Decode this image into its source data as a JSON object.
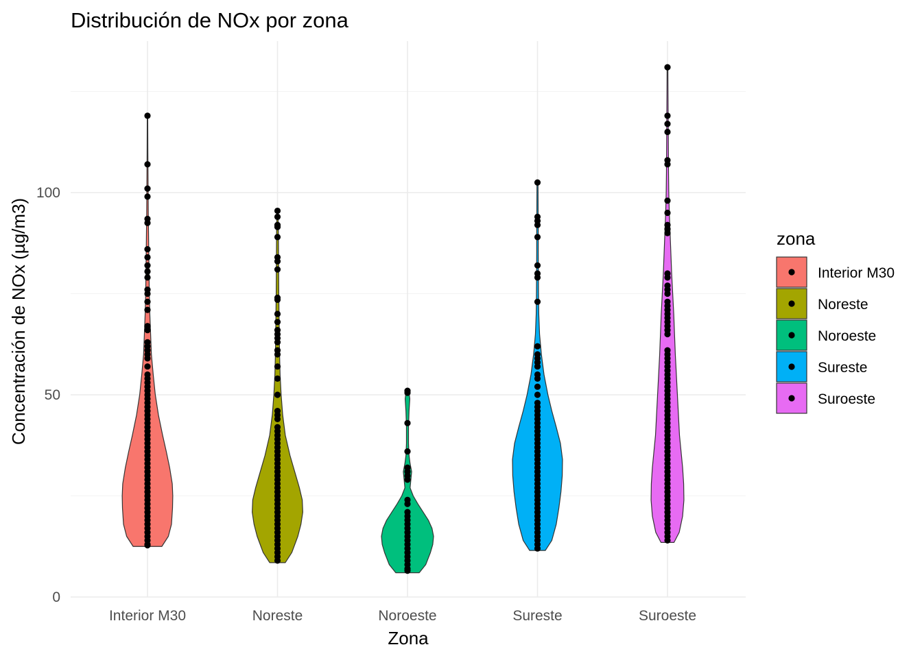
{
  "chart_data": {
    "type": "violin",
    "title": "Distribución de NOx por zona",
    "xlabel": "Zona",
    "ylabel": "Concentración de NOx (µg/m3)",
    "ylim": [
      0,
      132
    ],
    "yticks": [
      0,
      50,
      100
    ],
    "grid": true,
    "legend": {
      "title": "zona",
      "position": "right"
    },
    "categories": [
      "Interior M30",
      "Noreste",
      "Noroeste",
      "Sureste",
      "Suroeste"
    ],
    "colors": [
      "#F8766D",
      "#A3A500",
      "#00BF7D",
      "#00B0F6",
      "#E76BF3"
    ],
    "series": [
      {
        "name": "Interior M30",
        "range": [
          12.5,
          119
        ],
        "density": [
          [
            12.5,
            0.55
          ],
          [
            15,
            0.8
          ],
          [
            18,
            0.92
          ],
          [
            22,
            0.96
          ],
          [
            25,
            0.97
          ],
          [
            28,
            0.95
          ],
          [
            32,
            0.85
          ],
          [
            36,
            0.72
          ],
          [
            40,
            0.58
          ],
          [
            45,
            0.42
          ],
          [
            50,
            0.3
          ],
          [
            55,
            0.22
          ],
          [
            60,
            0.15
          ],
          [
            65,
            0.12
          ],
          [
            70,
            0.09
          ],
          [
            75,
            0.07
          ],
          [
            80,
            0.06
          ],
          [
            85,
            0.05
          ],
          [
            90,
            0.04
          ],
          [
            95,
            0.03
          ],
          [
            100,
            0.025
          ],
          [
            105,
            0.02
          ],
          [
            110,
            0.015
          ],
          [
            115,
            0.012
          ],
          [
            119,
            0.01
          ]
        ],
        "points": [
          119,
          107,
          101,
          99,
          93.5,
          92.5,
          86,
          84,
          82,
          80.5,
          79,
          76,
          75,
          73,
          71,
          67,
          66,
          63,
          62,
          61,
          60,
          59,
          57,
          55,
          54,
          53,
          52,
          51,
          50,
          49,
          48,
          47,
          46,
          45,
          44,
          43,
          42,
          41,
          40,
          39,
          38,
          37,
          36,
          35,
          34,
          33,
          32,
          31,
          30,
          29,
          28,
          27,
          26,
          25,
          24,
          23,
          22,
          21,
          20,
          19,
          18,
          17,
          16,
          15,
          14,
          13,
          12.8
        ]
      },
      {
        "name": "Noreste",
        "range": [
          8.5,
          95.5
        ],
        "density": [
          [
            8.5,
            0.3
          ],
          [
            11,
            0.55
          ],
          [
            15,
            0.78
          ],
          [
            18,
            0.9
          ],
          [
            21,
            0.97
          ],
          [
            24,
            0.95
          ],
          [
            27,
            0.84
          ],
          [
            31,
            0.66
          ],
          [
            35,
            0.48
          ],
          [
            40,
            0.3
          ],
          [
            45,
            0.2
          ],
          [
            50,
            0.14
          ],
          [
            55,
            0.1
          ],
          [
            60,
            0.08
          ],
          [
            65,
            0.07
          ],
          [
            70,
            0.06
          ],
          [
            75,
            0.05
          ],
          [
            80,
            0.045
          ],
          [
            85,
            0.04
          ],
          [
            90,
            0.035
          ],
          [
            95.5,
            0.02
          ]
        ],
        "points": [
          95.5,
          94,
          92,
          91.5,
          89,
          84,
          83,
          81,
          74,
          73.5,
          70,
          68,
          66,
          65,
          64,
          63,
          61,
          60,
          57,
          54,
          50,
          46,
          45,
          44,
          42,
          41,
          40,
          39,
          38,
          37,
          36,
          35,
          34,
          33,
          32,
          31,
          30,
          29,
          28,
          27,
          26,
          25,
          24,
          23,
          22,
          21,
          20,
          19,
          18,
          17,
          16,
          15,
          14,
          13,
          12,
          11,
          10,
          9
        ]
      },
      {
        "name": "Noroeste",
        "range": [
          6,
          51
        ],
        "density": [
          [
            6,
            0.45
          ],
          [
            8,
            0.7
          ],
          [
            11,
            0.88
          ],
          [
            13,
            0.97
          ],
          [
            15,
            1.0
          ],
          [
            17,
            0.94
          ],
          [
            19,
            0.8
          ],
          [
            21,
            0.6
          ],
          [
            23,
            0.4
          ],
          [
            25,
            0.22
          ],
          [
            27,
            0.1
          ],
          [
            29,
            0.13
          ],
          [
            31,
            0.16
          ],
          [
            33,
            0.1
          ],
          [
            35,
            0.06
          ],
          [
            38,
            0.04
          ],
          [
            42,
            0.04
          ],
          [
            46,
            0.06
          ],
          [
            49,
            0.09
          ],
          [
            51,
            0.05
          ]
        ],
        "points": [
          51,
          50.5,
          43,
          36,
          32,
          31,
          30,
          29,
          24,
          23,
          21,
          20,
          19,
          18,
          17,
          16,
          15,
          14,
          13,
          12,
          11,
          10,
          9,
          8,
          7,
          6.5
        ]
      },
      {
        "name": "Sureste",
        "range": [
          11.5,
          102.5
        ],
        "density": [
          [
            11.5,
            0.3
          ],
          [
            14,
            0.55
          ],
          [
            18,
            0.72
          ],
          [
            22,
            0.82
          ],
          [
            26,
            0.9
          ],
          [
            30,
            0.95
          ],
          [
            34,
            0.96
          ],
          [
            38,
            0.88
          ],
          [
            42,
            0.72
          ],
          [
            46,
            0.55
          ],
          [
            50,
            0.4
          ],
          [
            55,
            0.25
          ],
          [
            60,
            0.15
          ],
          [
            65,
            0.08
          ],
          [
            70,
            0.05
          ],
          [
            75,
            0.04
          ],
          [
            80,
            0.035
          ],
          [
            85,
            0.03
          ],
          [
            90,
            0.03
          ],
          [
            95,
            0.025
          ],
          [
            102.5,
            0.02
          ]
        ],
        "points": [
          102.5,
          94,
          93,
          92,
          89,
          82,
          80,
          79,
          73,
          62,
          60,
          59,
          58,
          57,
          55,
          54,
          52,
          50,
          48,
          47,
          46,
          45,
          44,
          43,
          42,
          41,
          40,
          39,
          38,
          37,
          36,
          35,
          34,
          33,
          32,
          31,
          30,
          29,
          28,
          27,
          26,
          25,
          24,
          23,
          22,
          21,
          20,
          19,
          18,
          17,
          16,
          15,
          14,
          13,
          12
        ]
      },
      {
        "name": "Suroeste",
        "range": [
          13.5,
          131
        ],
        "density": [
          [
            13.5,
            0.25
          ],
          [
            16,
            0.45
          ],
          [
            20,
            0.58
          ],
          [
            24,
            0.63
          ],
          [
            28,
            0.62
          ],
          [
            32,
            0.58
          ],
          [
            36,
            0.52
          ],
          [
            40,
            0.46
          ],
          [
            45,
            0.42
          ],
          [
            50,
            0.38
          ],
          [
            55,
            0.34
          ],
          [
            60,
            0.3
          ],
          [
            65,
            0.27
          ],
          [
            70,
            0.24
          ],
          [
            75,
            0.2
          ],
          [
            80,
            0.16
          ],
          [
            85,
            0.13
          ],
          [
            90,
            0.1
          ],
          [
            95,
            0.07
          ],
          [
            100,
            0.05
          ],
          [
            105,
            0.04
          ],
          [
            110,
            0.035
          ],
          [
            115,
            0.03
          ],
          [
            120,
            0.025
          ],
          [
            125,
            0.02
          ],
          [
            131,
            0.015
          ]
        ],
        "points": [
          131,
          119,
          117,
          115,
          108,
          107,
          98,
          95,
          92,
          91,
          90,
          80,
          79,
          77,
          76,
          75,
          73,
          72,
          71,
          70,
          69,
          68,
          67,
          66,
          65,
          61,
          60,
          59,
          58,
          57,
          56,
          55,
          54,
          53,
          52,
          51,
          50,
          49,
          48,
          47,
          46,
          45,
          44,
          43,
          42,
          41,
          40,
          39,
          38,
          37,
          36,
          35,
          34,
          33,
          32,
          31,
          30,
          29,
          28,
          27,
          26,
          25,
          24,
          23,
          22,
          21,
          20,
          19,
          18,
          17,
          16,
          15,
          14
        ]
      }
    ]
  }
}
